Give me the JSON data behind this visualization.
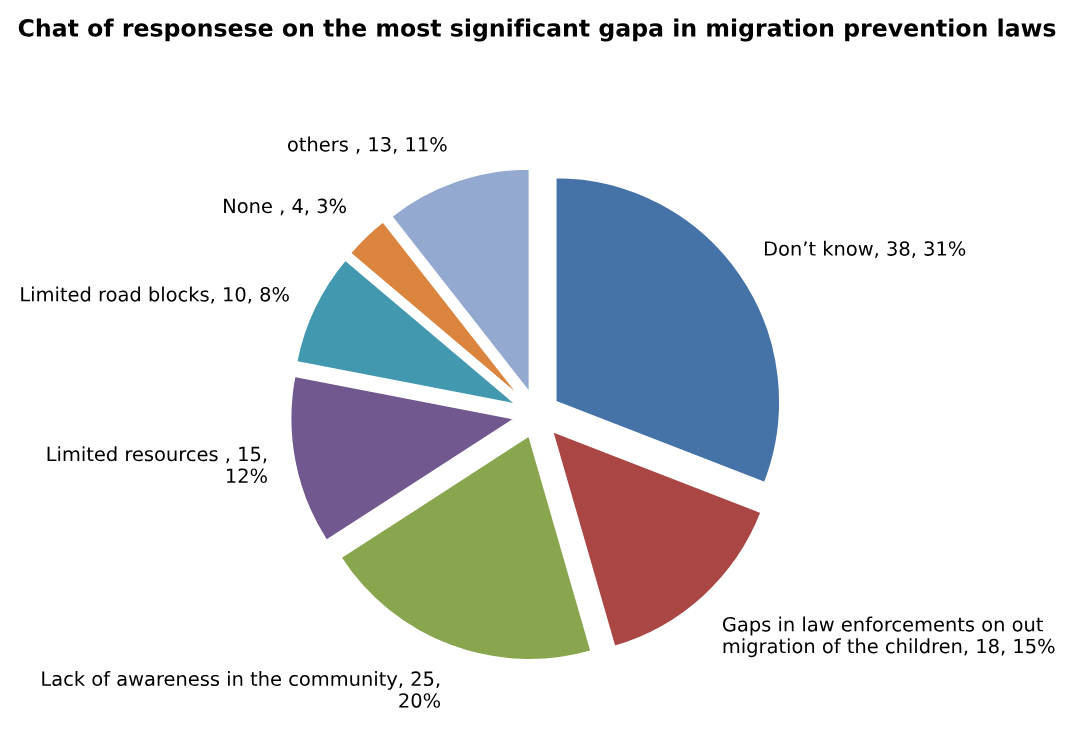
{
  "chart_data": {
    "type": "pie",
    "title": "Chat of responsese on the most significant gapa in migration prevention laws",
    "categories": [
      "Don’t know",
      "Gaps in law enforcements on out migration of the children",
      "Lack of awareness in the community",
      "Limited resources ",
      "Limited road blocks",
      "None ",
      "others "
    ],
    "values": [
      38,
      18,
      25,
      15,
      10,
      4,
      13
    ],
    "value_labels": [
      ", 38, 31%",
      ", 18, 15%",
      ", 25, 20%",
      ", 15, 12%",
      ", 10, 8%",
      ", 4, 3%",
      ", 13, 11%"
    ],
    "colors": [
      "#4572a7",
      "#aa4643",
      "#89a54e",
      "#71588f",
      "#4198af",
      "#db843d",
      "#93a9cf"
    ],
    "legend": false
  }
}
